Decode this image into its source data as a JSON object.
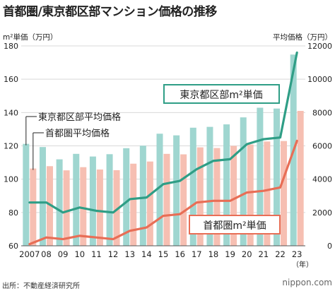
{
  "header": {
    "title": "首都圏/東京都区部マンション価格の推移"
  },
  "footer": {
    "source": "出所：不動産経済研究所",
    "brand": "nippon.com"
  },
  "chart_data": {
    "type": "bar",
    "categories": [
      "2007",
      "08",
      "09",
      "10",
      "11",
      "12",
      "13",
      "14",
      "15",
      "16",
      "17",
      "18",
      "19",
      "20",
      "21",
      "22",
      "23"
    ],
    "x_unit": "（年）",
    "y_left": {
      "label": "m²単価（万円）",
      "ticks": [
        60,
        80,
        100,
        120,
        140,
        160,
        180
      ],
      "ylim": [
        60,
        180
      ]
    },
    "y_right": {
      "label": "平均価格（万円）",
      "ticks": [
        0,
        2000,
        4000,
        6000,
        8000,
        10000,
        12000
      ],
      "ylim": [
        0,
        12000
      ]
    },
    "grid": true,
    "series": [
      {
        "name": "東京都区部平均価格",
        "type": "bar",
        "axis": "right",
        "color": "#9fd6d0",
        "values": [
          6120,
          5930,
          5190,
          5520,
          5360,
          5500,
          5860,
          6010,
          6730,
          6630,
          7090,
          7140,
          7290,
          7710,
          8290,
          8240,
          11480
        ]
      },
      {
        "name": "首都圏平均価格",
        "type": "bar",
        "axis": "right",
        "color": "#f6bfb2",
        "values": [
          4640,
          4780,
          4530,
          4720,
          4580,
          4540,
          4930,
          5060,
          5520,
          5490,
          5910,
          5870,
          6000,
          6080,
          6260,
          6290,
          8100
        ]
      },
      {
        "name": "東京都区部m²単価",
        "type": "line",
        "axis": "left",
        "color": "#2f9e86",
        "values": [
          86,
          86,
          80,
          83,
          81,
          80,
          88,
          89,
          97,
          99,
          106,
          111,
          112,
          121,
          124,
          125,
          176
        ]
      },
      {
        "name": "首都圏m²単価",
        "type": "line",
        "axis": "left",
        "color": "#e86e56",
        "values": [
          61,
          65,
          64,
          66,
          65,
          64,
          69,
          71,
          78,
          79,
          86,
          87,
          87,
          92,
          93,
          95,
          123
        ]
      }
    ],
    "annotations": {
      "bar_label_tokyo": "東京都区部平均価格",
      "bar_label_shutoken": "首都圏平均価格",
      "line_label_tokyo": "東京都区部m²単価",
      "line_label_shutoken": "首都圏m²単価"
    }
  }
}
